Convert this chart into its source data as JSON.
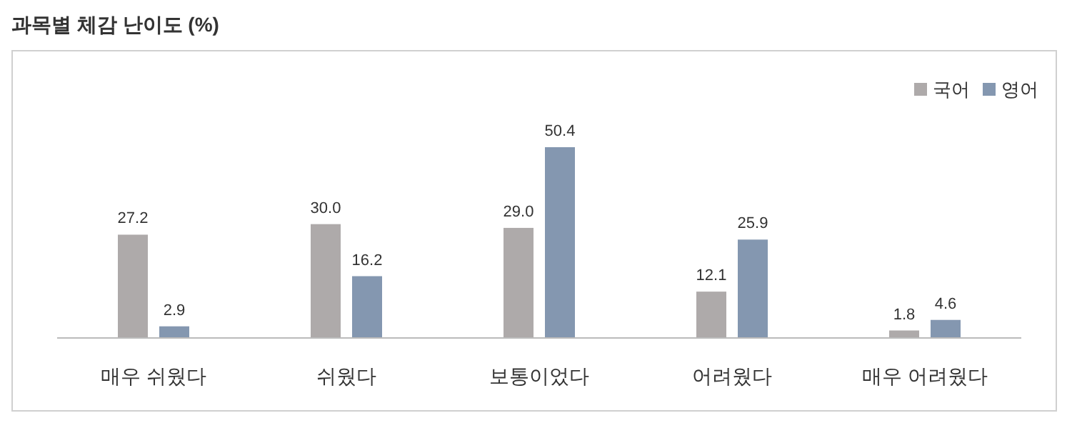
{
  "chart_data": {
    "type": "bar",
    "title": "과목별 체감 난이도 (%)",
    "categories": [
      "매우 쉬웠다",
      "쉬웠다",
      "보통이었다",
      "어려웠다",
      "매우 어려웠다"
    ],
    "series": [
      {
        "name": "국어",
        "color": "#aeaaaa",
        "values": [
          27.2,
          30.0,
          29.0,
          12.1,
          1.8
        ],
        "value_labels": [
          "27.2",
          "30.0",
          "29.0",
          "12.1",
          "1.8"
        ]
      },
      {
        "name": "영어",
        "color": "#8497b0",
        "values": [
          2.9,
          16.2,
          50.4,
          25.9,
          4.6
        ],
        "value_labels": [
          "2.9",
          "16.2",
          "50.4",
          "25.9",
          "4.6"
        ]
      }
    ],
    "legend": "top right"
  }
}
